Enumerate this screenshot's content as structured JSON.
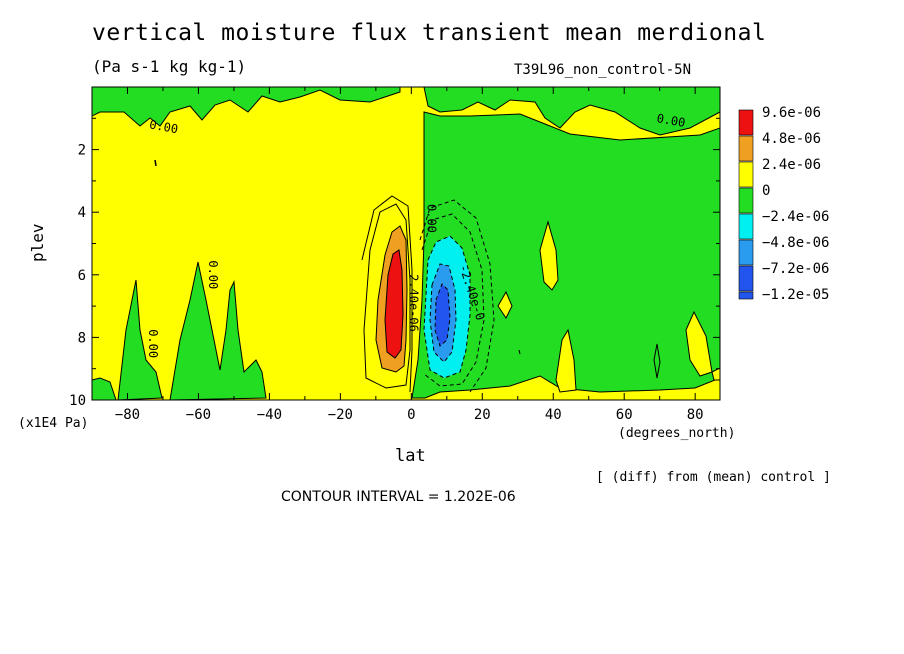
{
  "header": {
    "title": "vertical moisture flux transient mean merdional",
    "units": "(Pa s-1 kg kg-1)",
    "dataset": "T39L96_non_control-5N"
  },
  "axes": {
    "ylabel": "plev",
    "yunit": "(x1E4 Pa)",
    "xlabel": "lat",
    "xunit": "(degrees_north)"
  },
  "footer": {
    "diff_note": "[ (diff) from (mean) control ]",
    "contour_interval": "CONTOUR INTERVAL = 1.202E-06"
  },
  "colors": {
    "red": "#ee1111",
    "orange": "#f0a020",
    "yellow": "#ffff00",
    "green": "#22dd22",
    "cyan": "#00f0f0",
    "lightblue": "#2a9cf0",
    "blue": "#2255ee"
  },
  "chart_data": {
    "type": "heatmap",
    "x_axis": {
      "range": [
        -90,
        87
      ],
      "ticks": [
        -80,
        -60,
        -40,
        -20,
        0,
        20,
        40,
        60,
        80
      ]
    },
    "y_axis": {
      "range": [
        0,
        10
      ],
      "inverted": true,
      "ticks": [
        2,
        4,
        6,
        8,
        10
      ]
    },
    "legend": {
      "placement": "right",
      "entries": [
        {
          "label": "9.6e-06",
          "color": "#ee1111"
        },
        {
          "label": "4.8e-06",
          "color": "#f0a020"
        },
        {
          "label": "2.4e-06",
          "color": "#ffff00"
        },
        {
          "label": "0",
          "color": "#22dd22"
        },
        {
          "label": "−2.4e-06",
          "color": "#00f0f0"
        },
        {
          "label": "−4.8e-06",
          "color": "#2a9cf0"
        },
        {
          "label": "−7.2e-06",
          "color": "#2255ee"
        },
        {
          "label": "−1.2e-05",
          "color": "#2255ee"
        }
      ]
    },
    "contour_labels": [
      {
        "text": "0.00",
        "lat": -70,
        "plev": 1.4,
        "rot": 10
      },
      {
        "text": "0.00",
        "lat": 73,
        "plev": 1.2,
        "rot": 10
      },
      {
        "text": "0.00",
        "lat": -57,
        "plev": 6.0,
        "rot": 90
      },
      {
        "text": "0.00",
        "lat": -74,
        "plev": 8.2,
        "rot": 90
      },
      {
        "text": "0.00",
        "lat": 4.5,
        "plev": 4.2,
        "rot": 90
      },
      {
        "text": "2.40e-06",
        "lat": -0.5,
        "plev": 6.9,
        "rot": 90
      },
      {
        "text": "-2.40e-0",
        "lat": 16,
        "plev": 6.6,
        "rot": 72
      }
    ]
  }
}
